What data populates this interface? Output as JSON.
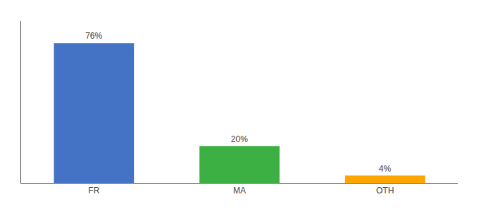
{
  "chart_data": {
    "type": "bar",
    "categories": [
      "FR",
      "MA",
      "OTH"
    ],
    "values": [
      76,
      20,
      4
    ],
    "value_labels": [
      "76%",
      "20%",
      "4%"
    ],
    "data_labels": true,
    "colors": [
      "#4472C4",
      "#3CB043",
      "#FFA500"
    ],
    "ylim": [
      0,
      88
    ],
    "grid": false,
    "tick_labels": "x"
  }
}
